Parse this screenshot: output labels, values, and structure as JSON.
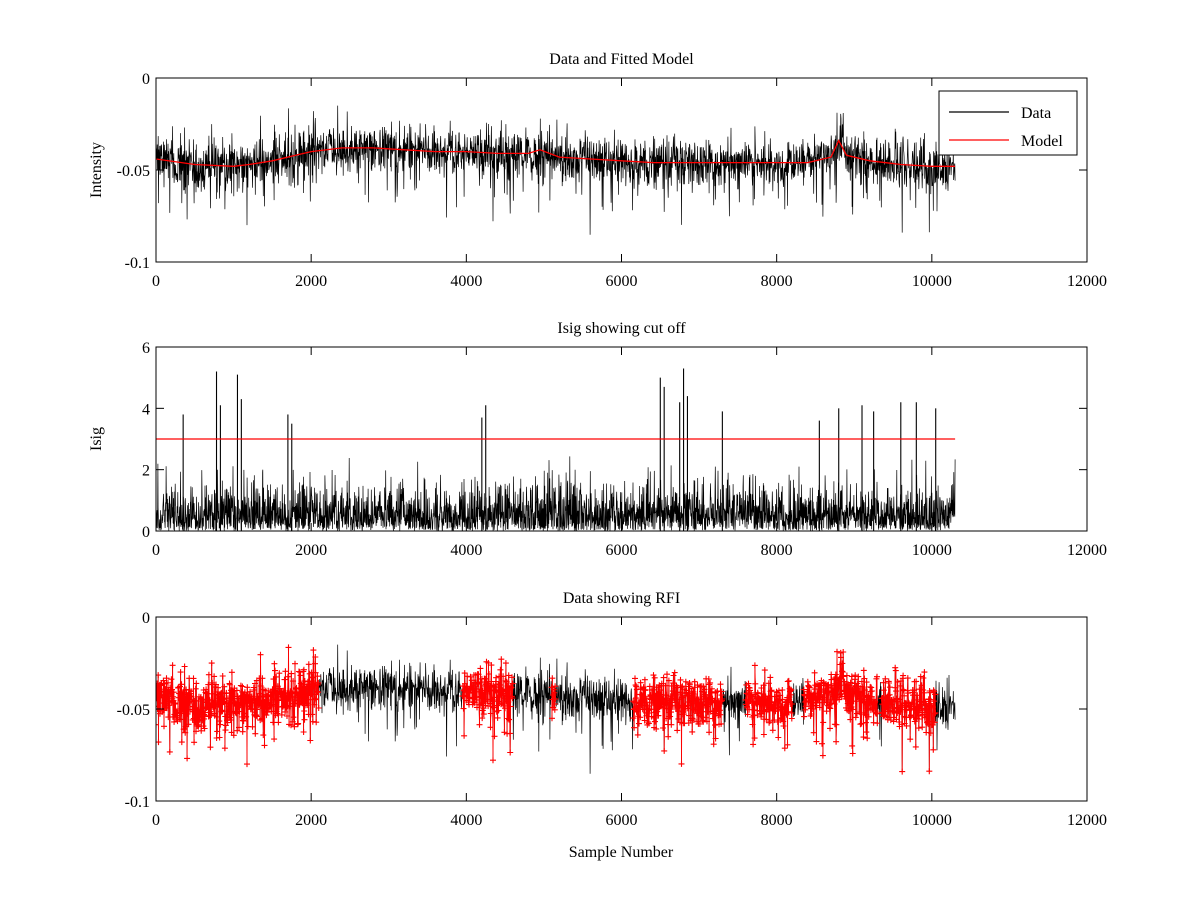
{
  "figure": {
    "xlabel": "Sample Number",
    "colors": {
      "data": "#000000",
      "model": "#ff0000",
      "rfi": "#ff0000",
      "cutoff": "#ff0000"
    }
  },
  "chart_data": [
    {
      "type": "line",
      "title": "Data and Fitted Model",
      "xlabel": "",
      "ylabel": "Intensity",
      "xlim": [
        0,
        12000
      ],
      "ylim": [
        -0.1,
        0
      ],
      "xticks": [
        0,
        2000,
        4000,
        6000,
        8000,
        10000,
        12000
      ],
      "xtick_labels": [
        "0",
        "2000",
        "4000",
        "6000",
        "8000",
        "10000",
        "12000"
      ],
      "yticks": [
        -0.1,
        -0.05,
        0
      ],
      "ytick_labels": [
        "-0.1",
        "-0.05",
        "0"
      ],
      "legend": {
        "position": "top-right",
        "entries": [
          "Data",
          "Model"
        ]
      },
      "series": [
        {
          "name": "Data",
          "color": "#000000",
          "segments": [
            {
              "x": [
                0,
                10300
              ],
              "center": [
                -0.042,
                -0.045
              ],
              "noise": 0.009,
              "dips": 0.02
            }
          ],
          "notes": "approx. 10300 noisy samples around the model level"
        },
        {
          "name": "Model",
          "color": "#ff0000",
          "x": [
            0,
            500,
            1000,
            1200,
            1500,
            1800,
            2000,
            2400,
            2800,
            3200,
            3600,
            4000,
            4400,
            4800,
            4950,
            5200,
            5600,
            6000,
            6400,
            6800,
            7200,
            7600,
            8000,
            8400,
            8700,
            8800,
            8900,
            9200,
            9600,
            10000,
            10300
          ],
          "y": [
            -0.044,
            -0.047,
            -0.048,
            -0.047,
            -0.045,
            -0.042,
            -0.04,
            -0.038,
            -0.038,
            -0.039,
            -0.04,
            -0.04,
            -0.041,
            -0.041,
            -0.039,
            -0.043,
            -0.044,
            -0.045,
            -0.046,
            -0.046,
            -0.046,
            -0.046,
            -0.046,
            -0.046,
            -0.043,
            -0.034,
            -0.042,
            -0.045,
            -0.047,
            -0.048,
            -0.048
          ]
        }
      ]
    },
    {
      "type": "line",
      "title": "Isig showing cut off",
      "xlabel": "",
      "ylabel": "Isig",
      "xlim": [
        0,
        12000
      ],
      "ylim": [
        0,
        6
      ],
      "xticks": [
        0,
        2000,
        4000,
        6000,
        8000,
        10000,
        12000
      ],
      "xtick_labels": [
        "0",
        "2000",
        "4000",
        "6000",
        "8000",
        "10000",
        "12000"
      ],
      "yticks": [
        0,
        2,
        4,
        6
      ],
      "ytick_labels": [
        "0",
        "2",
        "4",
        "6"
      ],
      "series": [
        {
          "name": "Isig",
          "color": "#000000",
          "x_range": [
            0,
            10300
          ],
          "typical_max": 2.2,
          "spikes": [
            {
              "x": 350,
              "y": 3.8
            },
            {
              "x": 780,
              "y": 5.2
            },
            {
              "x": 830,
              "y": 4.1
            },
            {
              "x": 1050,
              "y": 5.1
            },
            {
              "x": 1100,
              "y": 4.3
            },
            {
              "x": 1700,
              "y": 3.8
            },
            {
              "x": 1750,
              "y": 3.5
            },
            {
              "x": 4200,
              "y": 3.7
            },
            {
              "x": 4250,
              "y": 4.1
            },
            {
              "x": 6500,
              "y": 5.0
            },
            {
              "x": 6550,
              "y": 4.7
            },
            {
              "x": 6750,
              "y": 4.2
            },
            {
              "x": 6800,
              "y": 5.3
            },
            {
              "x": 6850,
              "y": 4.4
            },
            {
              "x": 7300,
              "y": 3.9
            },
            {
              "x": 8550,
              "y": 3.6
            },
            {
              "x": 8800,
              "y": 4.0
            },
            {
              "x": 9100,
              "y": 4.1
            },
            {
              "x": 9250,
              "y": 3.9
            },
            {
              "x": 9600,
              "y": 4.2
            },
            {
              "x": 9800,
              "y": 4.2
            },
            {
              "x": 10050,
              "y": 4.0
            }
          ]
        },
        {
          "name": "Cut off",
          "color": "#ff0000",
          "x": [
            0,
            10300
          ],
          "y": [
            3,
            3
          ]
        }
      ]
    },
    {
      "type": "line",
      "title": "Data showing RFI",
      "xlabel": "Sample Number",
      "ylabel": "",
      "xlim": [
        0,
        12000
      ],
      "ylim": [
        -0.1,
        0
      ],
      "xticks": [
        0,
        2000,
        4000,
        6000,
        8000,
        10000,
        12000
      ],
      "xtick_labels": [
        "0",
        "2000",
        "4000",
        "6000",
        "8000",
        "10000",
        "12000"
      ],
      "yticks": [
        -0.1,
        -0.05,
        0
      ],
      "ytick_labels": [
        "-0.1",
        "-0.05",
        "0"
      ],
      "series": [
        {
          "name": "Data",
          "color": "#000000",
          "x_range": [
            0,
            10300
          ]
        },
        {
          "name": "RFI flagged",
          "color": "#ff0000",
          "marker": "+",
          "regions": [
            [
              0,
              2100
            ],
            [
              3950,
              4600
            ],
            [
              5100,
              5150
            ],
            [
              6150,
              7300
            ],
            [
              7600,
              8200
            ],
            [
              8350,
              9300
            ],
            [
              9350,
              10050
            ]
          ]
        }
      ]
    }
  ]
}
